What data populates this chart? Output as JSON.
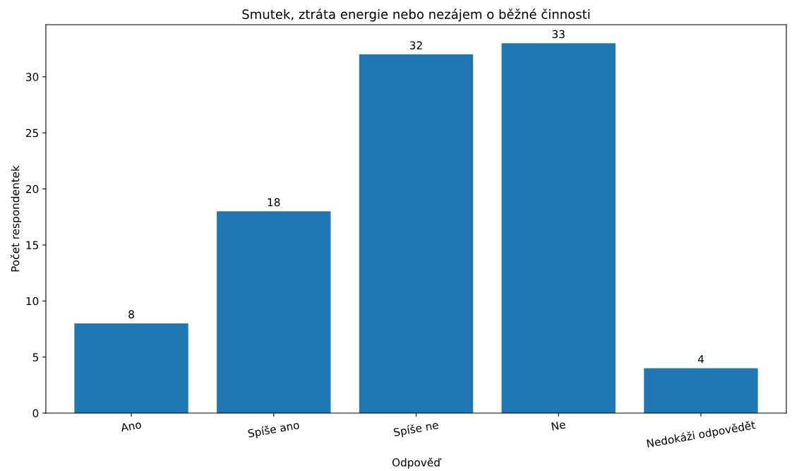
{
  "chart_data": {
    "type": "bar",
    "title": "Smutek, ztráta energie nebo nezájem o běžné činnosti",
    "xlabel": "Odpověď",
    "ylabel": "Počet respondentek",
    "categories": [
      "Ano",
      "Spíše ano",
      "Spíše ne",
      "Ne",
      "Nedokáži odpovědět"
    ],
    "values": [
      8,
      18,
      32,
      33,
      4
    ],
    "color": "#1f77b4",
    "ylim": [
      0,
      34.65
    ],
    "yticks": [
      0,
      5,
      10,
      15,
      20,
      25,
      30
    ],
    "data_labels": true,
    "grid": false,
    "legend": false
  }
}
